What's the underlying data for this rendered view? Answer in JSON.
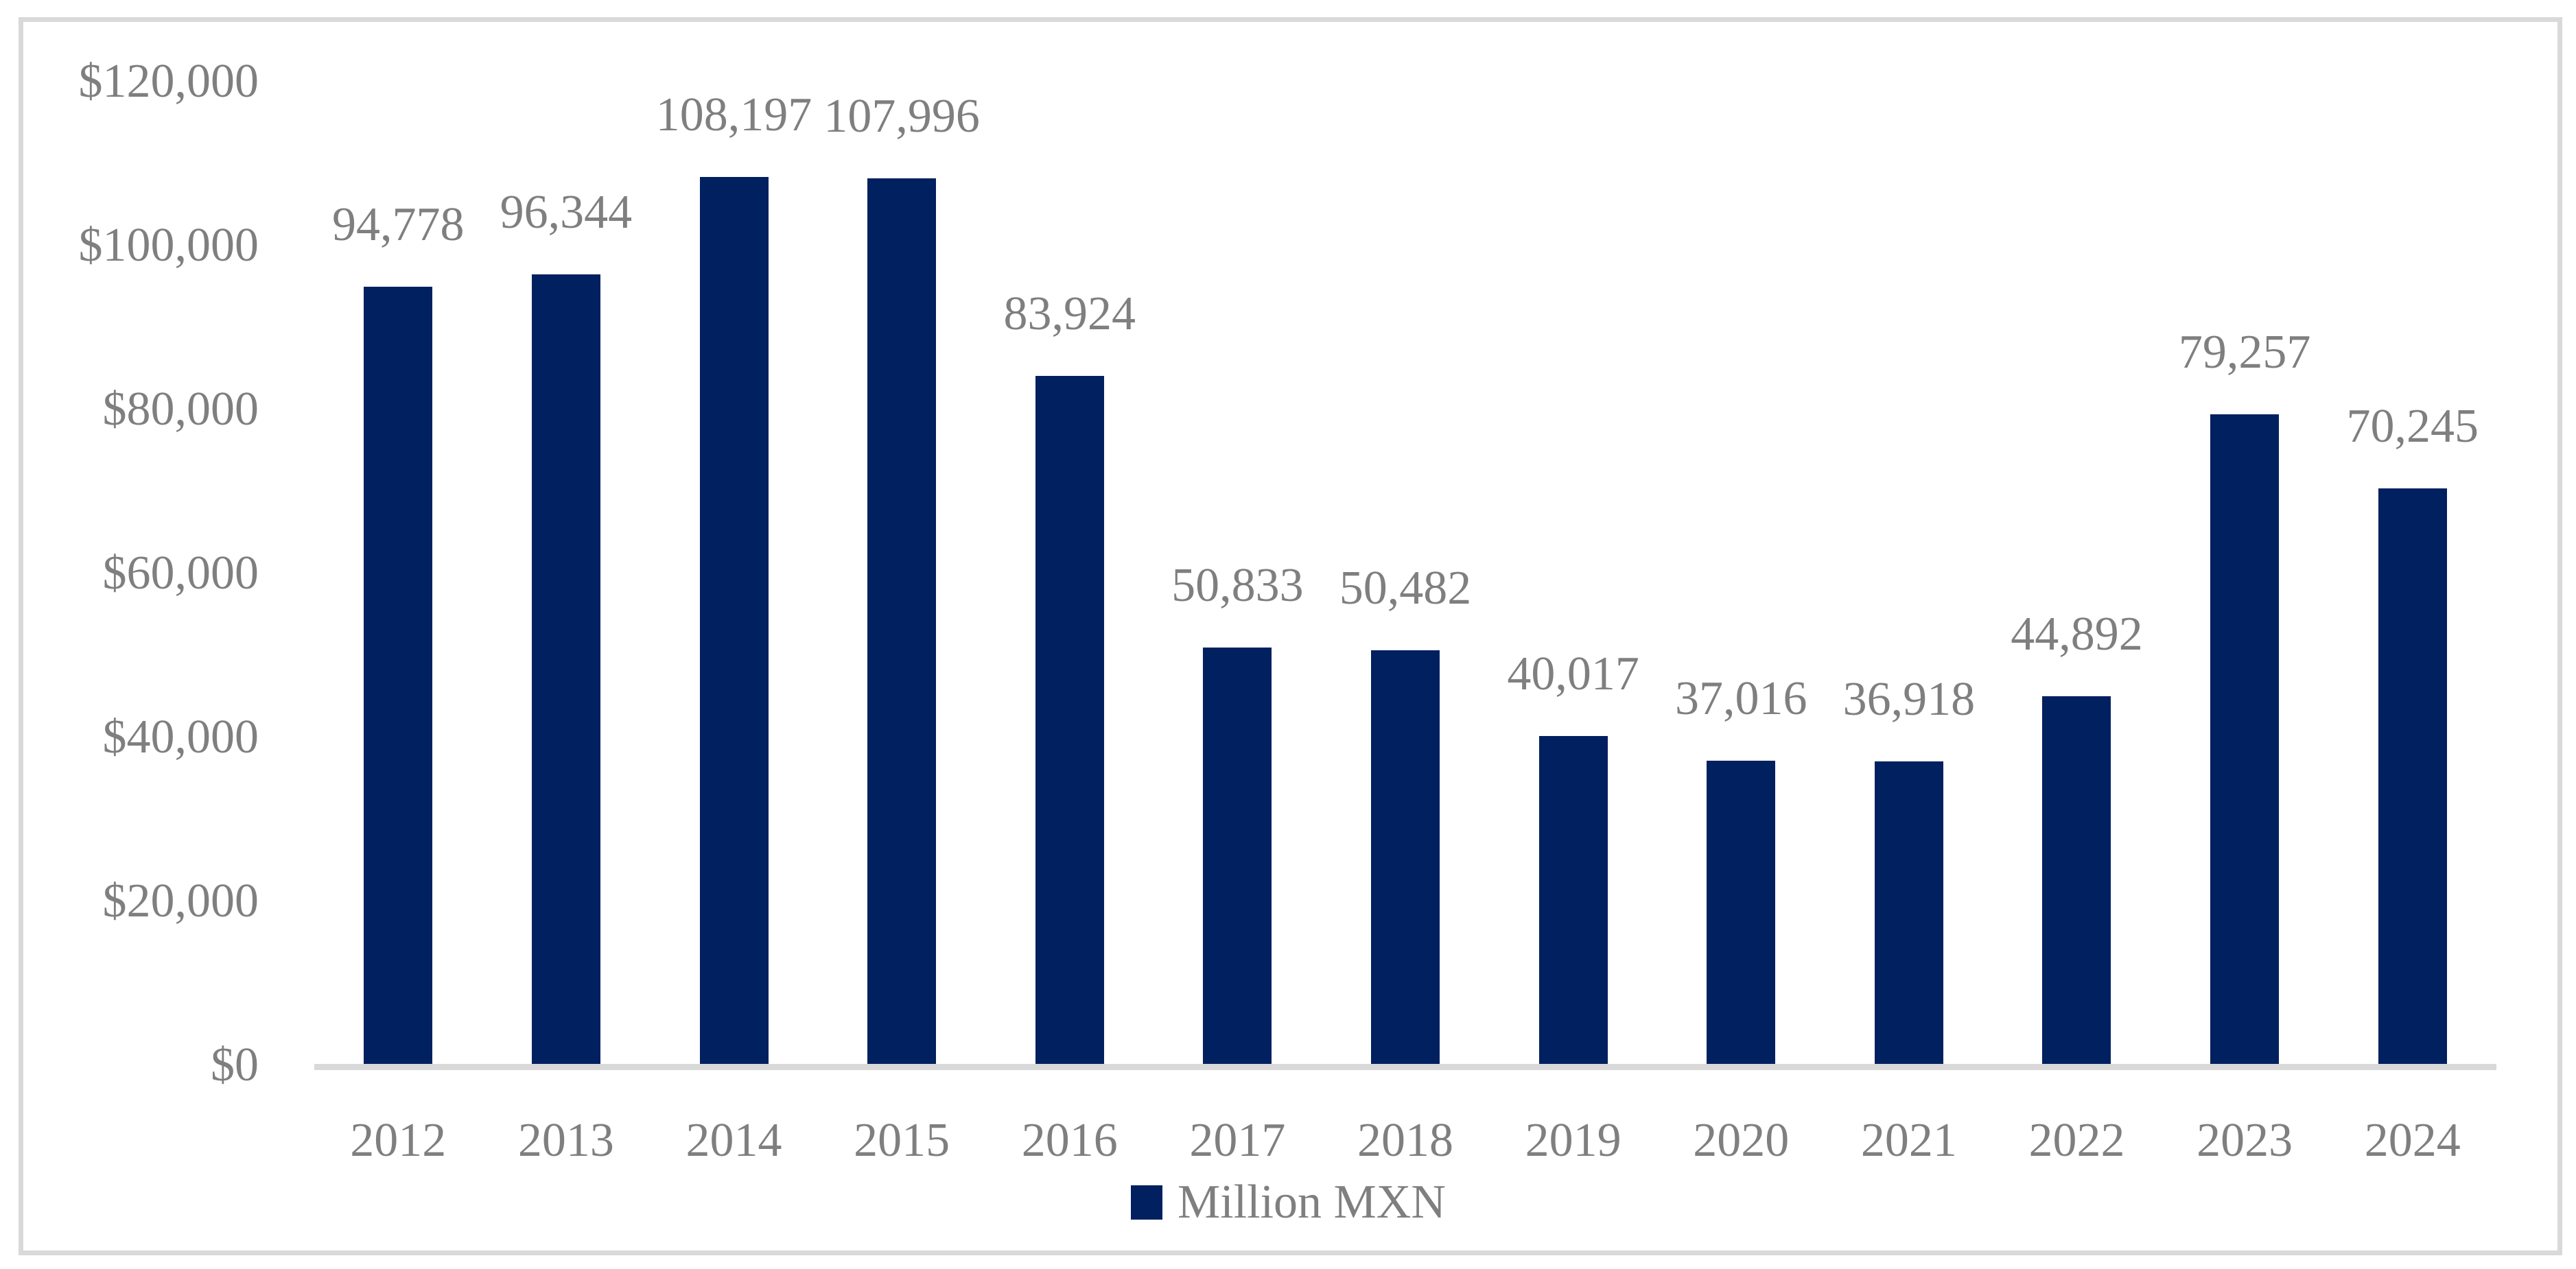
{
  "chart_data": {
    "type": "bar",
    "categories": [
      "2012",
      "2013",
      "2014",
      "2015",
      "2016",
      "2017",
      "2018",
      "2019",
      "2020",
      "2021",
      "2022",
      "2023",
      "2024"
    ],
    "values": [
      94778,
      96344,
      108197,
      107996,
      83924,
      50833,
      50482,
      40017,
      37016,
      36918,
      44892,
      79257,
      70245
    ],
    "value_labels": [
      "94,778",
      "96,344",
      "108,197",
      "107,996",
      "83,924",
      "50,833",
      "50,482",
      "40,017",
      "37,016",
      "36,918",
      "44,892",
      "79,257",
      "70,245"
    ],
    "series_name": "Million MXN",
    "y_ticks": [
      "$0",
      "$20,000",
      "$40,000",
      "$60,000",
      "$80,000",
      "$100,000",
      "$120,000"
    ],
    "y_tick_values": [
      0,
      20000,
      40000,
      60000,
      80000,
      100000,
      120000
    ],
    "ylim": [
      0,
      120000
    ],
    "xlabel": "",
    "ylabel": "",
    "title": "",
    "grid": false,
    "legend_position": "bottom-center",
    "bar_color": "#002060",
    "label_text_color": "#7f7f7f",
    "axis_line_color": "#d9d9d9",
    "frame_border_color": "#d9d9d9"
  }
}
